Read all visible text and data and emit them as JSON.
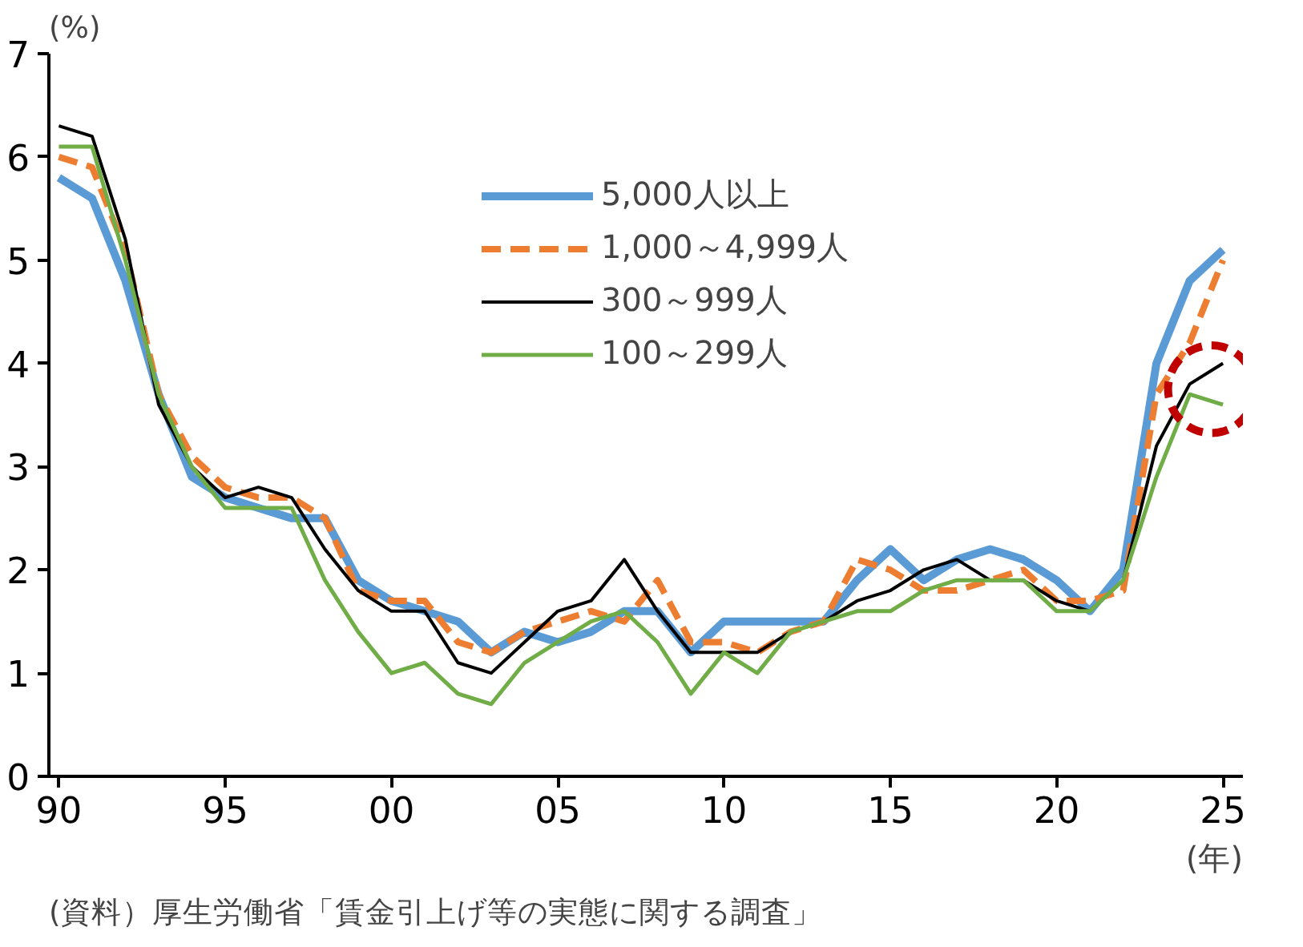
{
  "chart_data": {
    "type": "line",
    "x": [
      1990,
      1991,
      1992,
      1993,
      1994,
      1995,
      1996,
      1997,
      1998,
      1999,
      2000,
      2001,
      2002,
      2003,
      2004,
      2005,
      2006,
      2007,
      2008,
      2009,
      2010,
      2011,
      2012,
      2013,
      2014,
      2015,
      2016,
      2017,
      2018,
      2019,
      2020,
      2021,
      2022,
      2023,
      2024,
      2025
    ],
    "series": [
      {
        "name": "5,000人以上",
        "color": "#5b9bd5",
        "line_style": "solid",
        "values": [
          5.8,
          5.6,
          4.8,
          3.7,
          2.9,
          2.7,
          2.6,
          2.5,
          2.5,
          1.9,
          1.7,
          1.6,
          1.5,
          1.2,
          1.4,
          1.3,
          1.4,
          1.6,
          1.6,
          1.2,
          1.5,
          1.5,
          1.5,
          1.5,
          1.9,
          2.2,
          1.9,
          2.1,
          2.2,
          2.1,
          1.9,
          1.6,
          2.0,
          4.0,
          4.8,
          5.1
        ]
      },
      {
        "name": "1,000～4,999人",
        "color": "#ed7d31",
        "line_style": "dashed",
        "values": [
          6.0,
          5.9,
          5.1,
          3.7,
          3.1,
          2.8,
          2.7,
          2.7,
          2.5,
          1.8,
          1.7,
          1.7,
          1.3,
          1.2,
          1.4,
          1.5,
          1.6,
          1.5,
          1.9,
          1.3,
          1.3,
          1.2,
          1.4,
          1.5,
          2.1,
          2.0,
          1.8,
          1.8,
          1.9,
          2.0,
          1.7,
          1.7,
          1.8,
          3.7,
          4.2,
          5.0
        ]
      },
      {
        "name": "300～999人",
        "color": "#000000",
        "line_style": "solid",
        "values": [
          6.3,
          6.2,
          5.2,
          3.6,
          3.0,
          2.7,
          2.8,
          2.7,
          2.2,
          1.8,
          1.6,
          1.6,
          1.1,
          1.0,
          1.3,
          1.6,
          1.7,
          2.1,
          1.6,
          1.2,
          1.2,
          1.2,
          1.4,
          1.5,
          1.7,
          1.8,
          2.0,
          2.1,
          1.9,
          1.9,
          1.7,
          1.6,
          1.9,
          3.2,
          3.8,
          4.0
        ]
      },
      {
        "name": "100～299人",
        "color": "#70ad47",
        "line_style": "solid",
        "values": [
          6.1,
          6.1,
          5.0,
          3.7,
          3.0,
          2.6,
          2.6,
          2.6,
          1.9,
          1.4,
          1.0,
          1.1,
          0.8,
          0.7,
          1.1,
          1.3,
          1.5,
          1.6,
          1.3,
          0.8,
          1.2,
          1.0,
          1.4,
          1.5,
          1.6,
          1.6,
          1.8,
          1.9,
          1.9,
          1.9,
          1.6,
          1.6,
          1.9,
          2.9,
          3.7,
          3.6
        ]
      }
    ],
    "xlim": [
      1989.7,
      2025.6
    ],
    "xticks": [
      {
        "value": 1990,
        "label": "90"
      },
      {
        "value": 1995,
        "label": "95"
      },
      {
        "value": 2000,
        "label": "00"
      },
      {
        "value": 2005,
        "label": "05"
      },
      {
        "value": 2010,
        "label": "10"
      },
      {
        "value": 2015,
        "label": "15"
      },
      {
        "value": 2020,
        "label": "20"
      },
      {
        "value": 2025,
        "label": "25"
      }
    ],
    "ylim": [
      0,
      7
    ],
    "yticks": [
      0,
      1,
      2,
      3,
      4,
      5,
      6,
      7
    ],
    "ylabel": "(%)",
    "xlabel": "(年)",
    "annotations": [
      "(資料）厚生労働省「賃金引上げ等の実態に関する調査」"
    ],
    "grid": false,
    "legend": "top right",
    "marker": "none"
  }
}
